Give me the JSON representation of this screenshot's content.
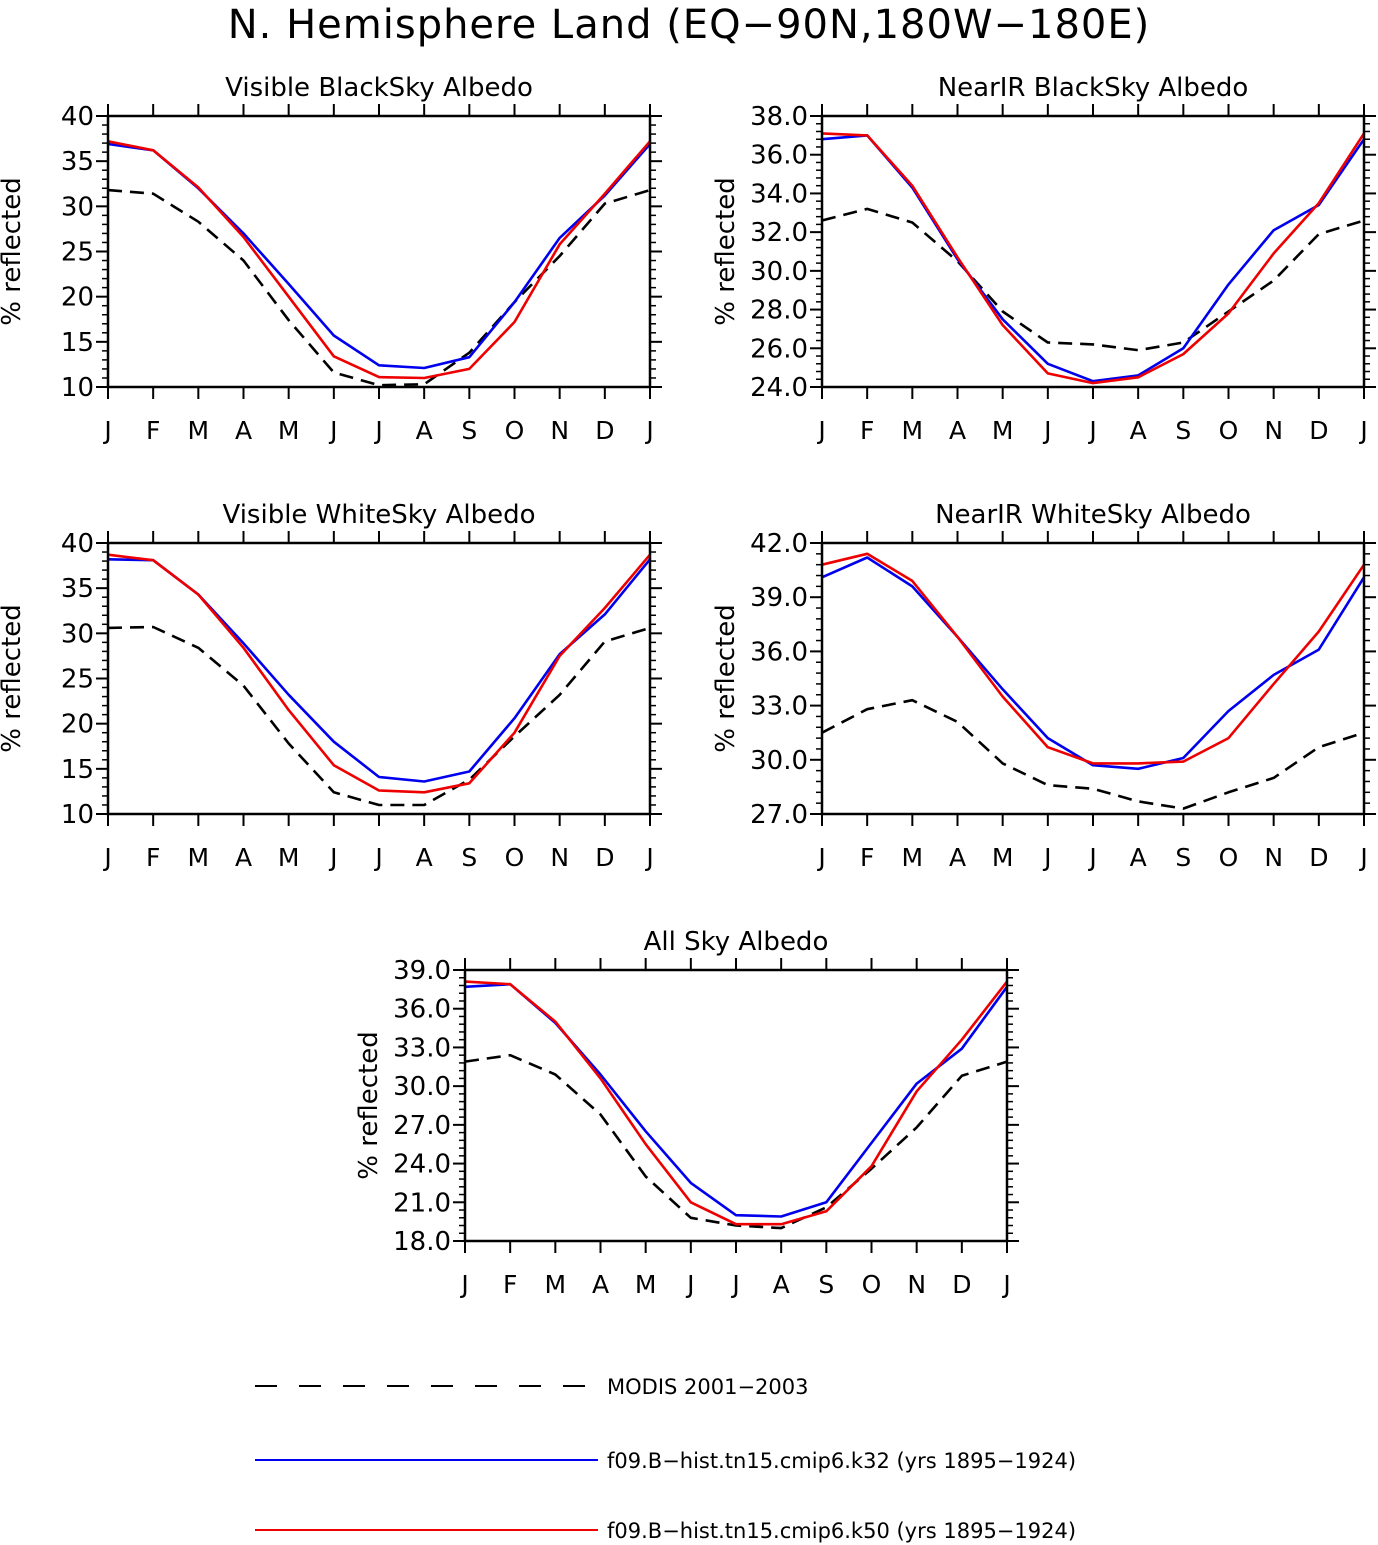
{
  "title": "N. Hemisphere Land (EQ−90N,180W−180E)",
  "colors": {
    "modis": "#000000",
    "k32": "#0000ee",
    "k50": "#ee0000"
  },
  "legend": [
    {
      "key": "modis",
      "label": "MODIS 2001−2003",
      "style": "dashed"
    },
    {
      "key": "k32",
      "label": "f09.B−hist.tn15.cmip6.k32 (yrs 1895−1924)",
      "style": "solid"
    },
    {
      "key": "k50",
      "label": "f09.B−hist.tn15.cmip6.k50 (yrs 1895−1924)",
      "style": "solid"
    }
  ],
  "chart_data": [
    {
      "type": "line",
      "title": "Visible BlackSky Albedo",
      "ylabel": "% reflected",
      "xlabel": "",
      "categories": [
        "J",
        "F",
        "M",
        "A",
        "M",
        "J",
        "J",
        "A",
        "S",
        "O",
        "N",
        "D",
        "J"
      ],
      "ylim": [
        10,
        40
      ],
      "yticks": [
        "10",
        "15",
        "20",
        "25",
        "30",
        "35",
        "40"
      ],
      "series": [
        {
          "name": "MODIS 2001−2003",
          "key": "modis",
          "values": [
            31.8,
            31.4,
            28.3,
            24.0,
            17.4,
            11.6,
            10.2,
            10.3,
            13.8,
            19.4,
            24.5,
            30.3,
            31.8
          ]
        },
        {
          "name": "f09.B−hist.tn15.cmip6.k32 (yrs 1895−1924)",
          "key": "k32",
          "values": [
            36.9,
            36.2,
            32.0,
            27.0,
            21.4,
            15.7,
            12.4,
            12.1,
            13.3,
            19.4,
            26.5,
            31.2,
            36.9
          ]
        },
        {
          "name": "f09.B−hist.tn15.cmip6.k50 (yrs 1895−1924)",
          "key": "k50",
          "values": [
            37.2,
            36.2,
            32.1,
            26.6,
            20.0,
            13.4,
            11.1,
            11.0,
            12.0,
            17.2,
            25.8,
            31.4,
            37.2
          ]
        }
      ]
    },
    {
      "type": "line",
      "title": "NearIR BlackSky Albedo",
      "ylabel": "% reflected",
      "xlabel": "",
      "categories": [
        "J",
        "F",
        "M",
        "A",
        "M",
        "J",
        "J",
        "A",
        "S",
        "O",
        "N",
        "D",
        "J"
      ],
      "ylim": [
        24.0,
        38.0
      ],
      "yticks": [
        "24.0",
        "26.0",
        "28.0",
        "30.0",
        "32.0",
        "34.0",
        "36.0",
        "38.0"
      ],
      "series": [
        {
          "name": "MODIS 2001−2003",
          "key": "modis",
          "values": [
            32.6,
            33.2,
            32.5,
            30.5,
            27.9,
            26.3,
            26.2,
            25.9,
            26.3,
            27.9,
            29.5,
            31.9,
            32.6
          ]
        },
        {
          "name": "f09.B−hist.tn15.cmip6.k32 (yrs 1895−1924)",
          "key": "k32",
          "values": [
            36.8,
            37.0,
            34.3,
            30.6,
            27.5,
            25.2,
            24.3,
            24.6,
            26.0,
            29.3,
            32.1,
            33.4,
            36.8
          ]
        },
        {
          "name": "f09.B−hist.tn15.cmip6.k50 (yrs 1895−1924)",
          "key": "k50",
          "values": [
            37.1,
            37.0,
            34.4,
            30.7,
            27.2,
            24.7,
            24.2,
            24.5,
            25.7,
            27.8,
            30.9,
            33.5,
            37.1
          ]
        }
      ]
    },
    {
      "type": "line",
      "title": "Visible WhiteSky Albedo",
      "ylabel": "% reflected",
      "xlabel": "",
      "categories": [
        "J",
        "F",
        "M",
        "A",
        "M",
        "J",
        "J",
        "A",
        "S",
        "O",
        "N",
        "D",
        "J"
      ],
      "ylim": [
        10,
        40
      ],
      "yticks": [
        "10",
        "15",
        "20",
        "25",
        "30",
        "35",
        "40"
      ],
      "series": [
        {
          "name": "MODIS 2001−2003",
          "key": "modis",
          "values": [
            30.6,
            30.7,
            28.4,
            24.2,
            17.8,
            12.4,
            11.0,
            11.0,
            13.8,
            18.6,
            23.2,
            29.1,
            30.6
          ]
        },
        {
          "name": "f09.B−hist.tn15.cmip6.k32 (yrs 1895−1924)",
          "key": "k32",
          "values": [
            38.2,
            38.1,
            34.3,
            28.9,
            23.2,
            18.0,
            14.1,
            13.6,
            14.7,
            20.6,
            27.7,
            32.1,
            38.2
          ]
        },
        {
          "name": "f09.B−hist.tn15.cmip6.k50 (yrs 1895−1924)",
          "key": "k50",
          "values": [
            38.7,
            38.1,
            34.3,
            28.4,
            21.5,
            15.4,
            12.6,
            12.4,
            13.4,
            19.0,
            27.5,
            32.8,
            38.7
          ]
        }
      ]
    },
    {
      "type": "line",
      "title": "NearIR WhiteSky Albedo",
      "ylabel": "% reflected",
      "xlabel": "",
      "categories": [
        "J",
        "F",
        "M",
        "A",
        "M",
        "J",
        "J",
        "A",
        "S",
        "O",
        "N",
        "D",
        "J"
      ],
      "ylim": [
        27.0,
        42.0
      ],
      "yticks": [
        "27.0",
        "30.0",
        "33.0",
        "36.0",
        "39.0",
        "42.0"
      ],
      "series": [
        {
          "name": "MODIS 2001−2003",
          "key": "modis",
          "values": [
            31.5,
            32.8,
            33.3,
            32.1,
            29.8,
            28.6,
            28.4,
            27.7,
            27.3,
            28.2,
            29.0,
            30.7,
            31.5
          ]
        },
        {
          "name": "f09.B−hist.tn15.cmip6.k32 (yrs 1895−1924)",
          "key": "k32",
          "values": [
            40.1,
            41.2,
            39.6,
            36.8,
            33.9,
            31.2,
            29.7,
            29.5,
            30.1,
            32.7,
            34.7,
            36.1,
            40.1
          ]
        },
        {
          "name": "f09.B−hist.tn15.cmip6.k50 (yrs 1895−1924)",
          "key": "k50",
          "values": [
            40.8,
            41.4,
            39.9,
            36.8,
            33.5,
            30.7,
            29.8,
            29.8,
            29.9,
            31.2,
            34.2,
            37.1,
            40.8
          ]
        }
      ]
    },
    {
      "type": "line",
      "title": "All Sky Albedo",
      "ylabel": "% reflected",
      "xlabel": "",
      "categories": [
        "J",
        "F",
        "M",
        "A",
        "M",
        "J",
        "J",
        "A",
        "S",
        "O",
        "N",
        "D",
        "J"
      ],
      "ylim": [
        18.0,
        39.0
      ],
      "yticks": [
        "18.0",
        "21.0",
        "24.0",
        "27.0",
        "30.0",
        "33.0",
        "36.0",
        "39.0"
      ],
      "series": [
        {
          "name": "MODIS 2001−2003",
          "key": "modis",
          "values": [
            31.9,
            32.4,
            30.9,
            27.8,
            23.0,
            19.8,
            19.2,
            19.0,
            20.6,
            23.6,
            26.8,
            30.8,
            31.9
          ]
        },
        {
          "name": "f09.B−hist.tn15.cmip6.k32 (yrs 1895−1924)",
          "key": "k32",
          "values": [
            37.7,
            37.9,
            34.9,
            30.9,
            26.5,
            22.5,
            20.0,
            19.9,
            21.0,
            25.6,
            30.2,
            32.9,
            37.7
          ]
        },
        {
          "name": "f09.B−hist.tn15.cmip6.k50 (yrs 1895−1924)",
          "key": "k50",
          "values": [
            38.1,
            37.9,
            35.0,
            30.6,
            25.5,
            21.0,
            19.3,
            19.3,
            20.3,
            23.8,
            29.6,
            33.6,
            38.1
          ]
        }
      ]
    }
  ]
}
